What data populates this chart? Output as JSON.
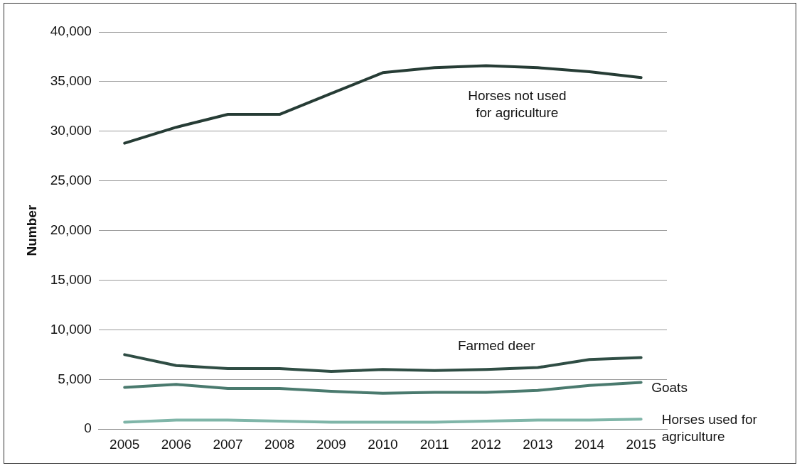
{
  "chart_data": {
    "type": "line",
    "ylabel": "Number",
    "categories": [
      "2005",
      "2006",
      "2007",
      "2008",
      "2009",
      "2010",
      "2011",
      "2012",
      "2013",
      "2014",
      "2015"
    ],
    "series": [
      {
        "name": "Horses not used for agriculture",
        "color": "#263c35",
        "values": [
          28800,
          30400,
          31700,
          31700,
          33800,
          35900,
          36400,
          36600,
          36400,
          36000,
          35400
        ]
      },
      {
        "name": "Farmed deer",
        "color": "#2f4d44",
        "values": [
          7500,
          6400,
          6100,
          6100,
          5800,
          6000,
          5900,
          6000,
          6200,
          7000,
          7200
        ]
      },
      {
        "name": "Goats",
        "color": "#4a7a6e",
        "values": [
          4200,
          4500,
          4100,
          4100,
          3800,
          3600,
          3700,
          3700,
          3900,
          4400,
          4700
        ]
      },
      {
        "name": "Horses used for agriculture",
        "color": "#7fb5a8",
        "values": [
          700,
          900,
          900,
          800,
          700,
          700,
          700,
          800,
          900,
          900,
          1000
        ]
      }
    ],
    "ylim": [
      0,
      40000
    ],
    "yticks": [
      0,
      {
        "value": 5000,
        "label": "5,000"
      },
      {
        "value": 10000,
        "label": "10,000"
      },
      {
        "value": 15000,
        "label": "15,000"
      },
      {
        "value": 20000,
        "label": "20,000"
      },
      {
        "value": 25000,
        "label": "25,000"
      },
      {
        "value": 30000,
        "label": "30,000"
      },
      {
        "value": 35000,
        "label": "35,000"
      },
      {
        "value": 40000,
        "label": "40,000"
      }
    ],
    "grid": "y",
    "legend": false,
    "marker": "none",
    "line_style": "solid"
  }
}
